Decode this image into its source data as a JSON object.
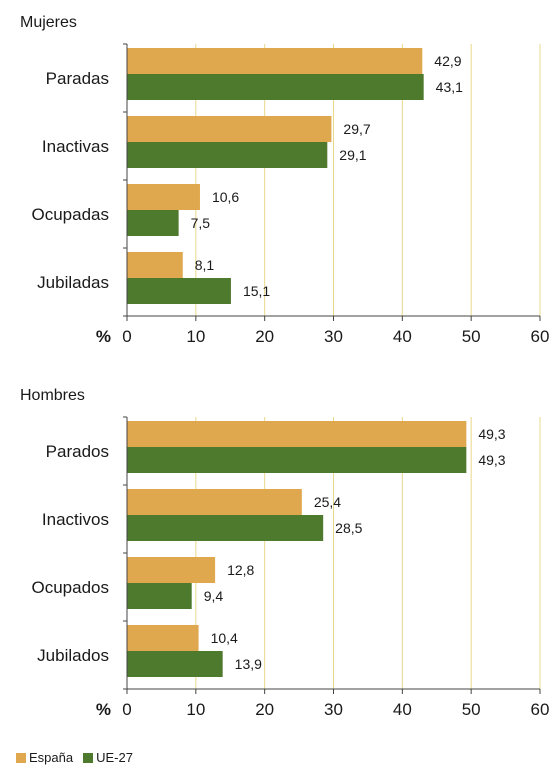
{
  "colors": {
    "espana": "#E0A84E",
    "ue27": "#4E7A2E",
    "grid": "#E8D88A",
    "axis": "#444444"
  },
  "chart_data": [
    {
      "type": "bar",
      "orientation": "horizontal",
      "title": "Mujeres",
      "unit_label": "%",
      "categories": [
        "Paradas",
        "Inactivas",
        "Ocupadas",
        "Jubiladas"
      ],
      "series": [
        {
          "name": "España",
          "values": [
            42.9,
            29.7,
            10.6,
            8.1
          ],
          "labels": [
            "42,9",
            "29,7",
            "10,6",
            "8,1"
          ]
        },
        {
          "name": "UE-27",
          "values": [
            43.1,
            29.1,
            7.5,
            15.1
          ],
          "labels": [
            "43,1",
            "29,1",
            "7,5",
            "15,1"
          ]
        }
      ],
      "xlim": [
        0,
        60
      ],
      "xticks": [
        0,
        10,
        20,
        30,
        40,
        50,
        60
      ],
      "grid": true
    },
    {
      "type": "bar",
      "orientation": "horizontal",
      "title": "Hombres",
      "unit_label": "%",
      "categories": [
        "Parados",
        "Inactivos",
        "Ocupados",
        "Jubilados"
      ],
      "series": [
        {
          "name": "España",
          "values": [
            49.3,
            25.4,
            12.8,
            10.4
          ],
          "labels": [
            "49,3",
            "25,4",
            "12,8",
            "10,4"
          ]
        },
        {
          "name": "UE-27",
          "values": [
            49.3,
            28.5,
            9.4,
            13.9
          ],
          "labels": [
            "49,3",
            "28,5",
            "9,4",
            "13,9"
          ]
        }
      ],
      "xlim": [
        0,
        60
      ],
      "xticks": [
        0,
        10,
        20,
        30,
        40,
        50,
        60
      ],
      "grid": true
    }
  ],
  "legend": {
    "items": [
      "España",
      "UE-27"
    ],
    "position": "bottom-left"
  }
}
